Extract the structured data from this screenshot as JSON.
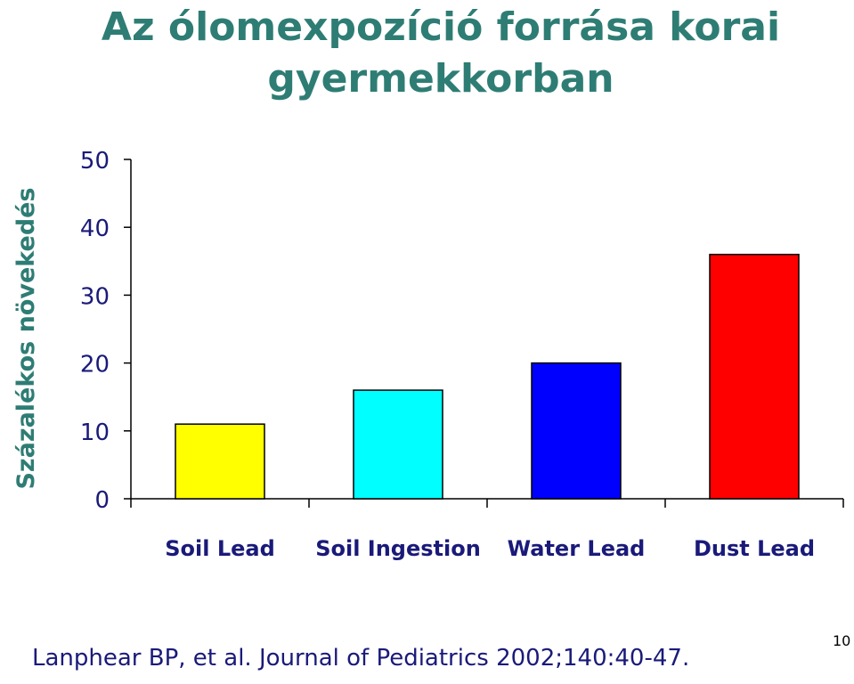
{
  "title": {
    "line1": "Az ólomexpozíció forrása korai",
    "line2": "gyermekkorban"
  },
  "citation": "Lanphear BP, et al. Journal of Pediatrics 2002;140:40-47.",
  "page_number": "10",
  "colors": {
    "title": "#2e7d74",
    "axis_text": "#1a1a7a",
    "ylabel": "#2e7d74"
  },
  "chart_data": {
    "type": "bar",
    "ylabel": "Százalékos növekedés",
    "xlabel": "",
    "categories": [
      "Soil Lead",
      "Soil Ingestion",
      "Water Lead",
      "Dust Lead"
    ],
    "values": [
      11,
      16,
      20,
      36
    ],
    "bar_colors": [
      "#ffff00",
      "#00ffff",
      "#0000ff",
      "#ff0000"
    ],
    "ylim": [
      0,
      50
    ],
    "yticks": [
      0,
      10,
      20,
      30,
      40,
      50
    ],
    "grid": false
  }
}
